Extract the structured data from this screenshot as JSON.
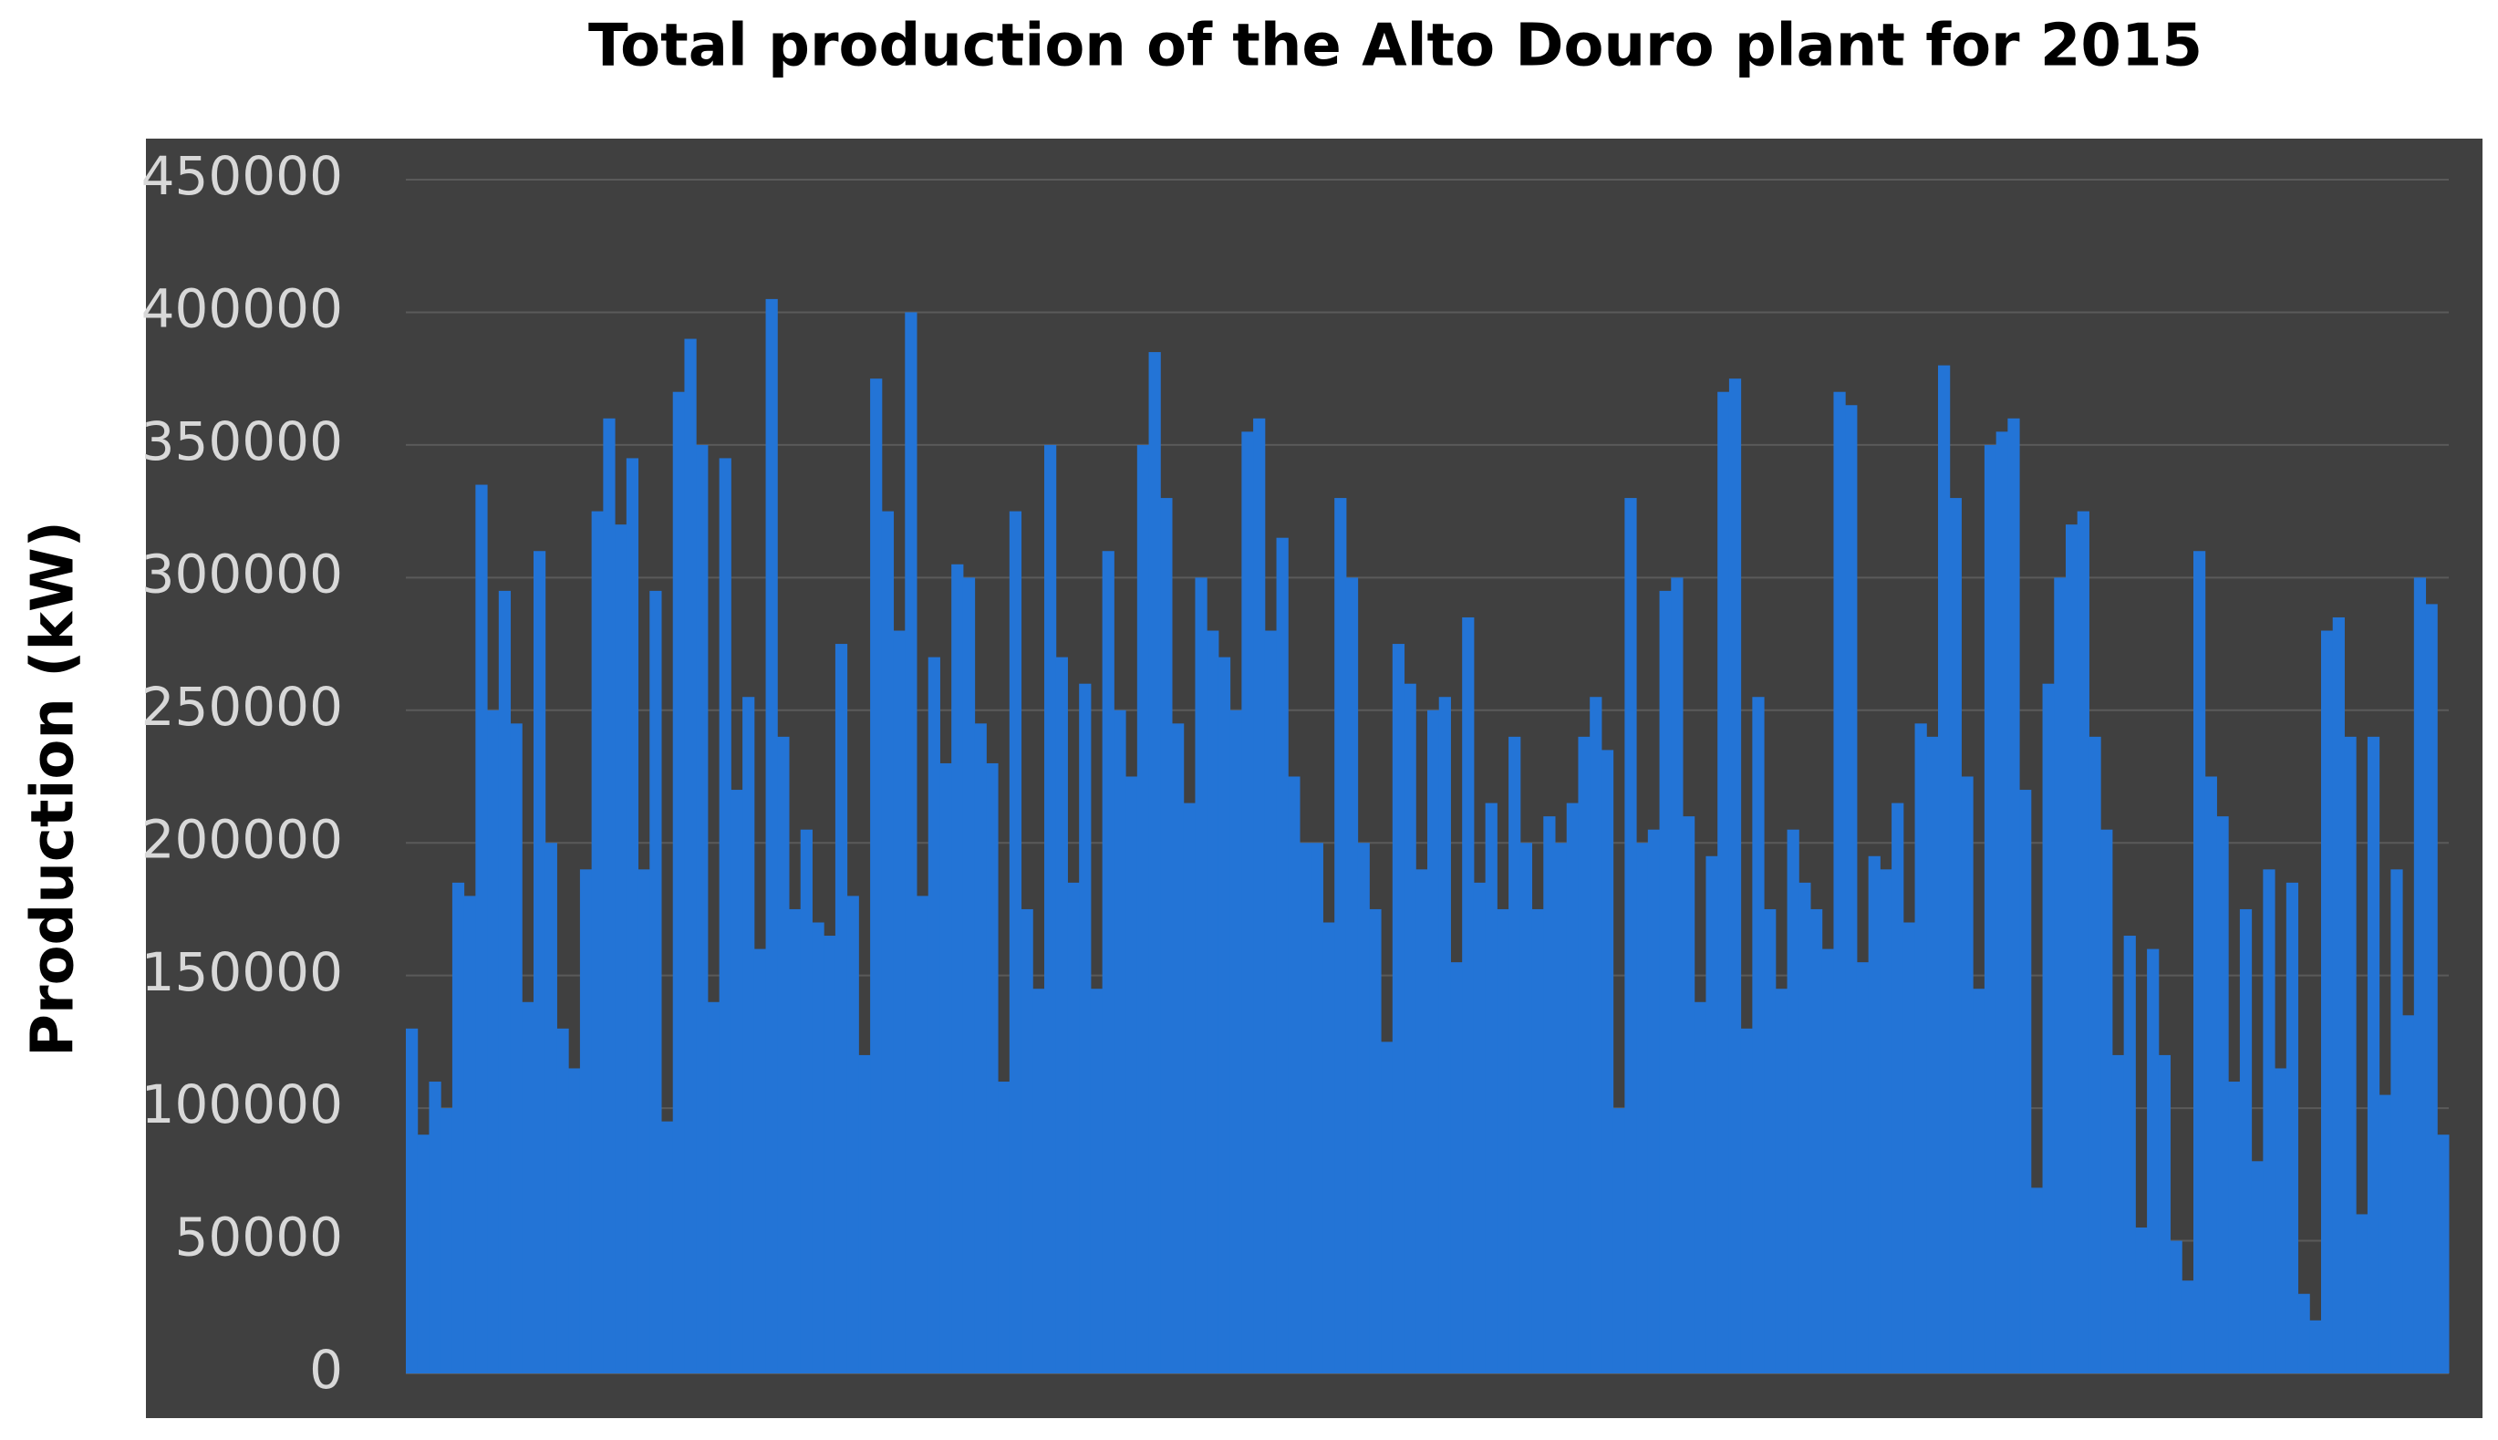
{
  "chart_data": {
    "type": "bar",
    "title": "Total production of the Alto Douro plant for 2015",
    "y_label": "Production (kW)",
    "color": "#2374d6",
    "grid": true,
    "ylim": [
      0,
      450000
    ],
    "yticks": [
      0,
      50000,
      100000,
      150000,
      200000,
      250000,
      300000,
      350000,
      400000,
      450000
    ],
    "values": [
      130000,
      90000,
      110000,
      100000,
      185000,
      180000,
      335000,
      250000,
      295000,
      245000,
      140000,
      310000,
      200000,
      130000,
      115000,
      190000,
      325000,
      360000,
      320000,
      345000,
      190000,
      295000,
      95000,
      370000,
      390000,
      350000,
      140000,
      345000,
      220000,
      255000,
      160000,
      405000,
      240000,
      175000,
      205000,
      170000,
      165000,
      275000,
      180000,
      120000,
      375000,
      325000,
      280000,
      400000,
      180000,
      270000,
      230000,
      305000,
      300000,
      245000,
      230000,
      110000,
      325000,
      175000,
      145000,
      350000,
      270000,
      185000,
      260000,
      145000,
      310000,
      250000,
      225000,
      350000,
      385000,
      330000,
      245000,
      215000,
      300000,
      280000,
      270000,
      250000,
      355000,
      360000,
      280000,
      315000,
      225000,
      200000,
      200000,
      170000,
      330000,
      300000,
      200000,
      175000,
      125000,
      275000,
      260000,
      190000,
      250000,
      255000,
      155000,
      285000,
      185000,
      215000,
      175000,
      240000,
      200000,
      175000,
      210000,
      200000,
      215000,
      240000,
      255000,
      235000,
      100000,
      330000,
      200000,
      205000,
      295000,
      300000,
      210000,
      140000,
      195000,
      370000,
      375000,
      130000,
      255000,
      175000,
      145000,
      205000,
      185000,
      175000,
      160000,
      370000,
      365000,
      155000,
      195000,
      190000,
      215000,
      170000,
      245000,
      240000,
      380000,
      330000,
      225000,
      145000,
      350000,
      355000,
      360000,
      220000,
      70000,
      260000,
      300000,
      320000,
      325000,
      240000,
      205000,
      120000,
      165000,
      55000,
      160000,
      120000,
      50000,
      35000,
      310000,
      225000,
      210000,
      110000,
      175000,
      80000,
      190000,
      115000,
      185000,
      30000,
      20000,
      280000,
      285000,
      240000,
      60000,
      240000,
      105000,
      190000,
      135000,
      300000,
      290000,
      90000
    ]
  }
}
